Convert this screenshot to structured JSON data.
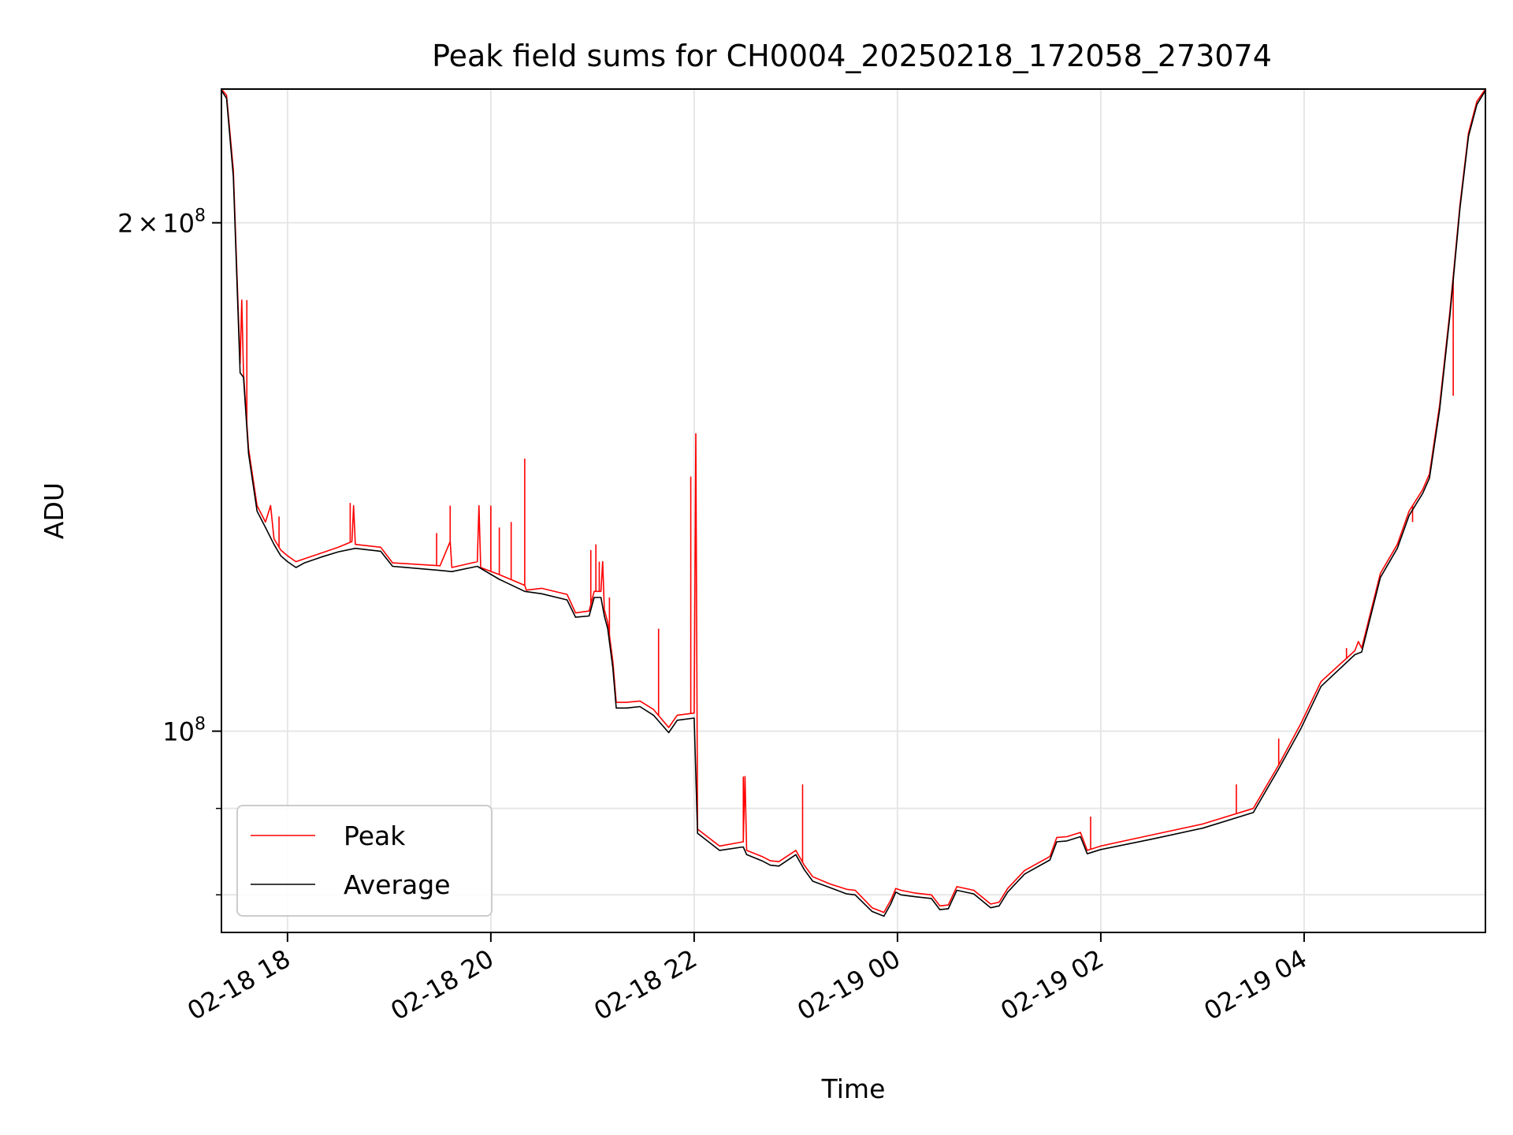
{
  "chart_data": {
    "type": "line",
    "title": "Peak field sums for CH0004_20250218_172058_273074",
    "xlabel": "Time",
    "ylabel": "ADU",
    "yscale": "log",
    "xlim": [
      "2025-02-18 17:21",
      "2025-02-19 05:47"
    ],
    "ylim": [
      76000000,
      240000000
    ],
    "grid": true,
    "legend_position": "lower left",
    "x_ticks": [
      {
        "t": "2025-02-18 18:00",
        "label": "02-18 18"
      },
      {
        "t": "2025-02-18 20:00",
        "label": "02-18 20"
      },
      {
        "t": "2025-02-18 22:00",
        "label": "02-18 22"
      },
      {
        "t": "2025-02-19 00:00",
        "label": "02-19 00"
      },
      {
        "t": "2025-02-19 02:00",
        "label": "02-19 02"
      },
      {
        "t": "2025-02-19 04:00",
        "label": "02-19 04"
      }
    ],
    "y_ticks": [
      {
        "value": 200000000,
        "mantissa": "2",
        "times": "×",
        "base": "10",
        "exp": "8"
      },
      {
        "value": 100000000,
        "mantissa": "",
        "times": "",
        "base": "10",
        "exp": "8"
      }
    ],
    "y_minor_ticks": [
      80000000,
      90000000
    ],
    "series": [
      {
        "name": "Peak",
        "color": "#ff0000",
        "points": [
          [
            "2025-02-18 17:21",
            240000000
          ],
          [
            "2025-02-18 17:24",
            238000000
          ],
          [
            "2025-02-18 17:28",
            215000000
          ],
          [
            "2025-02-18 17:32",
            165000000
          ],
          [
            "2025-02-18 17:33",
            180000000
          ],
          [
            "2025-02-18 17:34",
            163000000
          ],
          [
            "2025-02-18 17:37",
            147000000
          ],
          [
            "2025-02-18 17:42",
            136000000
          ],
          [
            "2025-02-18 17:47",
            133000000
          ],
          [
            "2025-02-18 17:50",
            136000000
          ],
          [
            "2025-02-18 17:52",
            130000000
          ],
          [
            "2025-02-18 17:56",
            128000000
          ],
          [
            "2025-02-18 18:00",
            127000000
          ],
          [
            "2025-02-18 18:05",
            126000000
          ],
          [
            "2025-02-18 18:10",
            126500000
          ],
          [
            "2025-02-18 18:20",
            127500000
          ],
          [
            "2025-02-18 18:30",
            128500000
          ],
          [
            "2025-02-18 18:38",
            129500000
          ],
          [
            "2025-02-18 18:39",
            136000000
          ],
          [
            "2025-02-18 18:40",
            129000000
          ],
          [
            "2025-02-18 18:55",
            128500000
          ],
          [
            "2025-02-18 19:02",
            125800000
          ],
          [
            "2025-02-18 19:30",
            125300000
          ],
          [
            "2025-02-18 19:36",
            129500000
          ],
          [
            "2025-02-18 19:37",
            125000000
          ],
          [
            "2025-02-18 19:52",
            126000000
          ],
          [
            "2025-02-18 19:53",
            136000000
          ],
          [
            "2025-02-18 19:54",
            125000000
          ],
          [
            "2025-02-18 20:05",
            123800000
          ],
          [
            "2025-02-18 20:20",
            122000000
          ],
          [
            "2025-02-18 20:21",
            121200000
          ],
          [
            "2025-02-18 20:30",
            121500000
          ],
          [
            "2025-02-18 20:45",
            120500000
          ],
          [
            "2025-02-18 20:50",
            117500000
          ],
          [
            "2025-02-18 20:58",
            117800000
          ],
          [
            "2025-02-18 21:01",
            121000000
          ],
          [
            "2025-02-18 21:05",
            121000000
          ],
          [
            "2025-02-18 21:06",
            126000000
          ],
          [
            "2025-02-18 21:07",
            118000000
          ],
          [
            "2025-02-18 21:09",
            116000000
          ],
          [
            "2025-02-18 21:12",
            110000000
          ],
          [
            "2025-02-18 21:14",
            104000000
          ],
          [
            "2025-02-18 21:20",
            104000000
          ],
          [
            "2025-02-18 21:28",
            104200000
          ],
          [
            "2025-02-18 21:36",
            103000000
          ],
          [
            "2025-02-18 21:45",
            100500000
          ],
          [
            "2025-02-18 21:50",
            102200000
          ],
          [
            "2025-02-18 22:00",
            102500000
          ],
          [
            "2025-02-18 22:01",
            150000000
          ],
          [
            "2025-02-18 22:02",
            87500000
          ],
          [
            "2025-02-18 22:15",
            85500000
          ],
          [
            "2025-02-18 22:29",
            86000000
          ],
          [
            "2025-02-18 22:30",
            94000000
          ],
          [
            "2025-02-18 22:31",
            85000000
          ],
          [
            "2025-02-18 22:40",
            84300000
          ],
          [
            "2025-02-18 22:45",
            83800000
          ],
          [
            "2025-02-18 22:50",
            83700000
          ],
          [
            "2025-02-18 23:00",
            85000000
          ],
          [
            "2025-02-18 23:05",
            83300000
          ],
          [
            "2025-02-18 23:10",
            82000000
          ],
          [
            "2025-02-18 23:20",
            81200000
          ],
          [
            "2025-02-18 23:30",
            80600000
          ],
          [
            "2025-02-18 23:35",
            80500000
          ],
          [
            "2025-02-18 23:45",
            78600000
          ],
          [
            "2025-02-18 23:52",
            78100000
          ],
          [
            "2025-02-18 23:56",
            79400000
          ],
          [
            "2025-02-18 23:59",
            80700000
          ],
          [
            "2025-02-19 00:02",
            80500000
          ],
          [
            "2025-02-19 00:10",
            80200000
          ],
          [
            "2025-02-19 00:20",
            80000000
          ],
          [
            "2025-02-19 00:25",
            78800000
          ],
          [
            "2025-02-19 00:30",
            78900000
          ],
          [
            "2025-02-19 00:35",
            80900000
          ],
          [
            "2025-02-19 00:45",
            80500000
          ],
          [
            "2025-02-19 00:55",
            79000000
          ],
          [
            "2025-02-19 01:00",
            79200000
          ],
          [
            "2025-02-19 01:05",
            80700000
          ],
          [
            "2025-02-19 01:15",
            82700000
          ],
          [
            "2025-02-19 01:30",
            84300000
          ],
          [
            "2025-02-19 01:34",
            86500000
          ],
          [
            "2025-02-19 01:40",
            86600000
          ],
          [
            "2025-02-19 01:48",
            87100000
          ],
          [
            "2025-02-19 01:52",
            85000000
          ],
          [
            "2025-02-19 02:00",
            85500000
          ],
          [
            "2025-02-19 02:30",
            86800000
          ],
          [
            "2025-02-19 03:00",
            88100000
          ],
          [
            "2025-02-19 03:30",
            90000000
          ],
          [
            "2025-02-19 03:45",
            95500000
          ],
          [
            "2025-02-19 03:58",
            101000000
          ],
          [
            "2025-02-19 04:10",
            107000000
          ],
          [
            "2025-02-19 04:30",
            111600000
          ],
          [
            "2025-02-19 04:32",
            113000000
          ],
          [
            "2025-02-19 04:34",
            112000000
          ],
          [
            "2025-02-19 04:45",
            124000000
          ],
          [
            "2025-02-19 04:55",
            129000000
          ],
          [
            "2025-02-19 05:02",
            135000000
          ],
          [
            "2025-02-19 05:10",
            139000000
          ],
          [
            "2025-02-19 05:14",
            142000000
          ],
          [
            "2025-02-19 05:20",
            156000000
          ],
          [
            "2025-02-19 05:26",
            177000000
          ],
          [
            "2025-02-19 05:32",
            205000000
          ],
          [
            "2025-02-19 05:37",
            226000000
          ],
          [
            "2025-02-19 05:42",
            236000000
          ],
          [
            "2025-02-19 05:47",
            240000000
          ]
        ],
        "spikes": [
          [
            "2025-02-18 17:36",
            180000000
          ],
          [
            "2025-02-18 17:55",
            134000000
          ],
          [
            "2025-02-18 18:37",
            136500000
          ],
          [
            "2025-02-18 19:28",
            131000000
          ],
          [
            "2025-02-18 19:36",
            136000000
          ],
          [
            "2025-02-18 20:20",
            145000000
          ],
          [
            "2025-02-18 20:12",
            133000000
          ],
          [
            "2025-02-18 20:00",
            136000000
          ],
          [
            "2025-02-18 20:05",
            132000000
          ],
          [
            "2025-02-18 20:59",
            128000000
          ],
          [
            "2025-02-18 21:02",
            129000000
          ],
          [
            "2025-02-18 21:04",
            126000000
          ],
          [
            "2025-02-18 21:06",
            125000000
          ],
          [
            "2025-02-18 21:10",
            120000000
          ],
          [
            "2025-02-18 21:39",
            115000000
          ],
          [
            "2025-02-18 21:58",
            141500000
          ],
          [
            "2025-02-18 22:29",
            94000000
          ],
          [
            "2025-02-18 23:04",
            93000000
          ],
          [
            "2025-02-19 01:54",
            89000000
          ],
          [
            "2025-02-19 03:20",
            93000000
          ],
          [
            "2025-02-19 03:45",
            99000000
          ],
          [
            "2025-02-19 04:25",
            112000000
          ],
          [
            "2025-02-19 05:04",
            133000000
          ],
          [
            "2025-02-19 05:28",
            158000000
          ]
        ]
      },
      {
        "name": "Average",
        "color": "#000000",
        "points": [
          [
            "2025-02-18 17:21",
            239500000
          ],
          [
            "2025-02-18 17:24",
            237000000
          ],
          [
            "2025-02-18 17:28",
            213000000
          ],
          [
            "2025-02-18 17:32",
            163000000
          ],
          [
            "2025-02-18 17:34",
            162000000
          ],
          [
            "2025-02-18 17:37",
            146000000
          ],
          [
            "2025-02-18 17:42",
            135000000
          ],
          [
            "2025-02-18 17:47",
            132000000
          ],
          [
            "2025-02-18 17:52",
            129000000
          ],
          [
            "2025-02-18 17:56",
            127000000
          ],
          [
            "2025-02-18 18:00",
            126000000
          ],
          [
            "2025-02-18 18:05",
            125000000
          ],
          [
            "2025-02-18 18:10",
            125800000
          ],
          [
            "2025-02-18 18:20",
            126800000
          ],
          [
            "2025-02-18 18:30",
            127700000
          ],
          [
            "2025-02-18 18:40",
            128300000
          ],
          [
            "2025-02-18 18:55",
            127800000
          ],
          [
            "2025-02-18 19:02",
            125200000
          ],
          [
            "2025-02-18 19:30",
            124500000
          ],
          [
            "2025-02-18 19:37",
            124300000
          ],
          [
            "2025-02-18 19:52",
            125200000
          ],
          [
            "2025-02-18 20:05",
            123000000
          ],
          [
            "2025-02-18 20:20",
            121000000
          ],
          [
            "2025-02-18 20:30",
            120600000
          ],
          [
            "2025-02-18 20:45",
            119600000
          ],
          [
            "2025-02-18 20:50",
            116800000
          ],
          [
            "2025-02-18 20:58",
            117000000
          ],
          [
            "2025-02-18 21:01",
            120000000
          ],
          [
            "2025-02-18 21:05",
            120000000
          ],
          [
            "2025-02-18 21:07",
            117000000
          ],
          [
            "2025-02-18 21:09",
            115000000
          ],
          [
            "2025-02-18 21:12",
            109000000
          ],
          [
            "2025-02-18 21:14",
            103200000
          ],
          [
            "2025-02-18 21:20",
            103200000
          ],
          [
            "2025-02-18 21:28",
            103400000
          ],
          [
            "2025-02-18 21:36",
            102200000
          ],
          [
            "2025-02-18 21:45",
            99800000
          ],
          [
            "2025-02-18 21:50",
            101500000
          ],
          [
            "2025-02-18 22:00",
            101800000
          ],
          [
            "2025-02-18 22:02",
            87000000
          ],
          [
            "2025-02-18 22:15",
            85000000
          ],
          [
            "2025-02-18 22:29",
            85400000
          ],
          [
            "2025-02-18 22:31",
            84500000
          ],
          [
            "2025-02-18 22:40",
            83800000
          ],
          [
            "2025-02-18 22:45",
            83300000
          ],
          [
            "2025-02-18 22:50",
            83200000
          ],
          [
            "2025-02-18 23:00",
            84500000
          ],
          [
            "2025-02-18 23:05",
            82800000
          ],
          [
            "2025-02-18 23:10",
            81500000
          ],
          [
            "2025-02-18 23:20",
            80800000
          ],
          [
            "2025-02-18 23:30",
            80100000
          ],
          [
            "2025-02-18 23:35",
            80000000
          ],
          [
            "2025-02-18 23:45",
            78200000
          ],
          [
            "2025-02-18 23:52",
            77700000
          ],
          [
            "2025-02-18 23:56",
            79000000
          ],
          [
            "2025-02-18 23:59",
            80300000
          ],
          [
            "2025-02-19 00:02",
            80000000
          ],
          [
            "2025-02-19 00:10",
            79800000
          ],
          [
            "2025-02-19 00:20",
            79600000
          ],
          [
            "2025-02-19 00:25",
            78400000
          ],
          [
            "2025-02-19 00:30",
            78500000
          ],
          [
            "2025-02-19 00:35",
            80500000
          ],
          [
            "2025-02-19 00:45",
            80100000
          ],
          [
            "2025-02-19 00:55",
            78600000
          ],
          [
            "2025-02-19 01:00",
            78800000
          ],
          [
            "2025-02-19 01:05",
            80300000
          ],
          [
            "2025-02-19 01:15",
            82300000
          ],
          [
            "2025-02-19 01:30",
            83900000
          ],
          [
            "2025-02-19 01:34",
            86000000
          ],
          [
            "2025-02-19 01:40",
            86100000
          ],
          [
            "2025-02-19 01:48",
            86600000
          ],
          [
            "2025-02-19 01:52",
            84600000
          ],
          [
            "2025-02-19 02:00",
            85100000
          ],
          [
            "2025-02-19 02:30",
            86300000
          ],
          [
            "2025-02-19 03:00",
            87600000
          ],
          [
            "2025-02-19 03:30",
            89500000
          ],
          [
            "2025-02-19 03:45",
            95000000
          ],
          [
            "2025-02-19 03:58",
            100300000
          ],
          [
            "2025-02-19 04:10",
            106300000
          ],
          [
            "2025-02-19 04:30",
            111000000
          ],
          [
            "2025-02-19 04:34",
            111400000
          ],
          [
            "2025-02-19 04:45",
            123300000
          ],
          [
            "2025-02-19 04:55",
            128300000
          ],
          [
            "2025-02-19 05:02",
            134200000
          ],
          [
            "2025-02-19 05:10",
            138300000
          ],
          [
            "2025-02-19 05:14",
            141200000
          ],
          [
            "2025-02-19 05:20",
            155000000
          ],
          [
            "2025-02-19 05:26",
            176000000
          ],
          [
            "2025-02-19 05:32",
            204000000
          ],
          [
            "2025-02-19 05:37",
            225000000
          ],
          [
            "2025-02-19 05:42",
            235000000
          ],
          [
            "2025-02-19 05:47",
            239500000
          ]
        ]
      }
    ]
  }
}
